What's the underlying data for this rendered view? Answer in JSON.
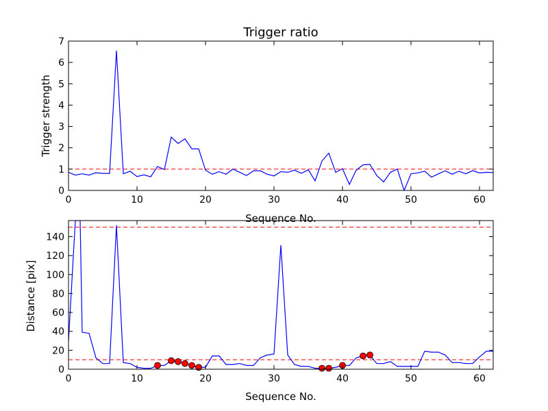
{
  "chart_data": [
    {
      "type": "line",
      "title": "Trigger ratio",
      "xlabel": "Sequence No.",
      "ylabel": "Trigger strength",
      "xlim": [
        0,
        62
      ],
      "ylim": [
        0,
        7
      ],
      "xticks": [
        0,
        10,
        20,
        30,
        40,
        50,
        60
      ],
      "yticks": [
        0,
        1,
        2,
        3,
        4,
        5,
        6,
        7
      ],
      "grid": false,
      "threshold": 1.0,
      "colors": {
        "line": "#0000ff",
        "threshold": "#ff0000"
      },
      "series": [
        {
          "x": [
            0,
            1,
            2,
            3,
            4,
            5,
            6,
            7,
            8,
            9,
            10,
            11,
            12,
            13,
            14,
            15,
            16,
            17,
            18,
            19,
            20,
            21,
            22,
            23,
            24,
            25,
            26,
            27,
            28,
            29,
            30,
            31,
            32,
            33,
            34,
            35,
            36,
            37,
            38,
            39,
            40,
            41,
            42,
            43,
            44,
            45,
            46,
            47,
            48,
            49,
            50,
            51,
            52,
            53,
            54,
            55,
            56,
            57,
            58,
            59,
            60,
            61,
            62
          ],
          "y": [
            0.85,
            0.72,
            0.78,
            0.72,
            0.83,
            0.8,
            0.8,
            6.55,
            0.78,
            0.9,
            0.65,
            0.73,
            0.64,
            1.12,
            0.98,
            2.5,
            2.2,
            2.42,
            1.95,
            1.95,
            0.95,
            0.76,
            0.88,
            0.76,
            1.0,
            0.85,
            0.7,
            0.92,
            0.92,
            0.76,
            0.68,
            0.88,
            0.85,
            0.95,
            0.8,
            0.97,
            0.45,
            1.38,
            1.75,
            0.85,
            1.02,
            0.28,
            0.95,
            1.2,
            1.22,
            0.7,
            0.4,
            0.85,
            1.0,
            0.0,
            0.78,
            0.82,
            0.9,
            0.62,
            0.78,
            0.92,
            0.76,
            0.9,
            0.78,
            0.93,
            0.82,
            0.85,
            0.84
          ]
        }
      ]
    },
    {
      "type": "line",
      "title": "",
      "xlabel": "Sequence No.",
      "ylabel": "Distance [pix]",
      "xlim": [
        0,
        62
      ],
      "ylim": [
        0,
        157
      ],
      "xticks": [
        0,
        10,
        20,
        30,
        40,
        50,
        60
      ],
      "yticks": [
        0,
        20,
        40,
        60,
        80,
        100,
        120,
        140
      ],
      "grid": false,
      "thresholds": [
        10,
        150
      ],
      "colors": {
        "line": "#0000ff",
        "threshold": "#ff0000",
        "marker": "#ff0000"
      },
      "series": [
        {
          "x": [
            0,
            1,
            1.7,
            2,
            3,
            4,
            5,
            6,
            7,
            8,
            9,
            10,
            11,
            12,
            13,
            14,
            15,
            16,
            17,
            18,
            19,
            20,
            21,
            22,
            23,
            24,
            25,
            26,
            27,
            28,
            29,
            30,
            31,
            32,
            33,
            34,
            35,
            36,
            37,
            38,
            39,
            40,
            41,
            42,
            43,
            44,
            45,
            46,
            47,
            48,
            49,
            50,
            51,
            52,
            53,
            54,
            55,
            56,
            57,
            58,
            59,
            60,
            61,
            62
          ],
          "y": [
            30,
            157,
            157,
            39,
            38,
            12,
            6,
            6,
            152,
            7,
            6,
            2,
            1,
            1,
            4,
            4,
            9,
            8,
            6,
            4,
            2,
            2,
            14,
            14,
            5,
            5,
            6,
            4,
            4,
            12,
            15,
            16,
            131,
            15,
            5,
            3,
            3,
            1,
            1,
            1,
            2,
            4,
            4,
            12,
            14,
            15,
            6,
            6,
            8,
            3,
            3,
            3,
            3,
            19,
            18,
            18,
            15,
            7,
            7,
            6,
            6,
            13,
            19,
            19
          ]
        }
      ],
      "markers": {
        "x": [
          13,
          15,
          16,
          17,
          18,
          19,
          37,
          38,
          40,
          43,
          44
        ],
        "y": [
          4,
          9,
          8,
          6,
          4,
          2,
          1,
          1,
          4,
          14,
          15
        ]
      }
    }
  ]
}
